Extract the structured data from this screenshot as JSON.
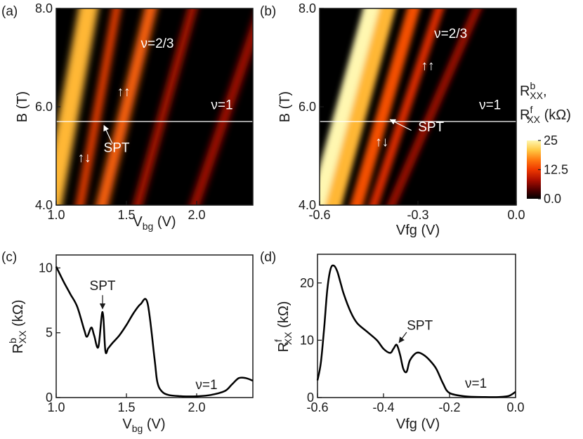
{
  "chart_data": [
    {
      "id": "a",
      "panel_label": "(a)",
      "type": "heatmap",
      "xlabel": "V",
      "xlabel_sub": "bg",
      "xlabel_unit": " (V)",
      "ylabel": "B (T)",
      "xlim": [
        1.0,
        2.4
      ],
      "ylim": [
        4.0,
        8.0
      ],
      "xticks": [
        "1.0",
        "1.5",
        "2.0"
      ],
      "xtick_values": [
        1.0,
        1.5,
        2.0
      ],
      "yticks": [
        "4.0",
        "6.0",
        "8.0"
      ],
      "ytick_values": [
        4.0,
        6.0,
        8.0
      ],
      "hline_B": 5.7,
      "stripes": [
        {
          "xb": 0.95,
          "xt": 1.25,
          "w": 0.14,
          "v": 20
        },
        {
          "xb": 1.15,
          "xt": 1.45,
          "w": 0.06,
          "v": 13
        },
        {
          "xb": 1.3,
          "xt": 1.7,
          "w": 0.09,
          "v": 15
        },
        {
          "xb": 1.55,
          "xt": 2.0,
          "w": 0.06,
          "v": 9
        },
        {
          "xb": 1.95,
          "xt": 2.5,
          "w": 0.07,
          "v": 8
        }
      ],
      "annotations": [
        {
          "text": "ν=2/3",
          "x": 1.72,
          "y": 7.2,
          "color": "#ffffff"
        },
        {
          "text": "ν=1",
          "x": 2.18,
          "y": 5.95,
          "color": "#ffffff"
        },
        {
          "text": "↑↑",
          "x": 1.48,
          "y": 6.22,
          "color": "#ffffff"
        },
        {
          "text": "↑↓",
          "x": 1.2,
          "y": 4.88,
          "color": "#ffffff"
        },
        {
          "text": "SPT",
          "x": 1.43,
          "y": 5.08,
          "color": "#ffffff"
        }
      ]
    },
    {
      "id": "b",
      "panel_label": "(b)",
      "type": "heatmap",
      "xlabel": "Vfg (V)",
      "ylabel": "B (T)",
      "xlim": [
        -0.6,
        0.0
      ],
      "ylim": [
        4.0,
        8.0
      ],
      "xticks": [
        "-0.6",
        "-0.3",
        "0.0"
      ],
      "xtick_values": [
        -0.6,
        -0.3,
        0.0
      ],
      "yticks": [
        "4.0",
        "6.0",
        "8.0"
      ],
      "ytick_values": [
        4.0,
        6.0,
        8.0
      ],
      "hline_B": 5.7,
      "stripes": [
        {
          "xb": -0.62,
          "xt": -0.43,
          "w": 0.05,
          "v": 25
        },
        {
          "xb": -0.57,
          "xt": -0.38,
          "w": 0.05,
          "v": 20
        },
        {
          "xb": -0.5,
          "xt": -0.3,
          "w": 0.04,
          "v": 14
        },
        {
          "xb": -0.45,
          "xt": -0.22,
          "w": 0.03,
          "v": 11
        },
        {
          "xb": -0.4,
          "xt": -0.1,
          "w": 0.03,
          "v": 7
        }
      ],
      "annotations": [
        {
          "text": "ν=2/3",
          "x": -0.2,
          "y": 7.4,
          "color": "#ffffff"
        },
        {
          "text": "ν=1",
          "x": -0.08,
          "y": 5.95,
          "color": "#ffffff"
        },
        {
          "text": "↑↑",
          "x": -0.27,
          "y": 6.75,
          "color": "#ffffff"
        },
        {
          "text": "↑↓",
          "x": -0.41,
          "y": 5.2,
          "color": "#ffffff"
        },
        {
          "text": "SPT",
          "x": -0.26,
          "y": 5.5,
          "color": "#ffffff"
        }
      ]
    },
    {
      "id": "c",
      "panel_label": "(c)",
      "type": "line",
      "xlabel": "V",
      "xlabel_sub": "bg",
      "xlabel_unit": " (V)",
      "ylabel": "R",
      "ylabel_sup": "b",
      "ylabel_sub": "XX",
      "ylabel_unit": " (kΩ)",
      "xlim": [
        1.0,
        2.4
      ],
      "ylim": [
        0,
        11
      ],
      "xticks": [
        "1.0",
        "1.5",
        "2.0"
      ],
      "xtick_values": [
        1.0,
        1.5,
        2.0
      ],
      "yticks": [
        "0",
        "5",
        "10"
      ],
      "ytick_values": [
        0,
        5,
        10
      ],
      "x": [
        1.0,
        1.05,
        1.1,
        1.15,
        1.2,
        1.22,
        1.25,
        1.27,
        1.3,
        1.33,
        1.35,
        1.37,
        1.4,
        1.45,
        1.5,
        1.55,
        1.6,
        1.65,
        1.7,
        1.72,
        1.75,
        1.8,
        1.9,
        2.0,
        2.1,
        2.2,
        2.25,
        2.3,
        2.35,
        2.4
      ],
      "y": [
        10.1,
        9.0,
        8.0,
        7.0,
        5.2,
        4.7,
        5.4,
        4.8,
        3.9,
        6.6,
        3.6,
        3.8,
        4.2,
        4.8,
        5.6,
        6.5,
        7.2,
        7.3,
        3.0,
        1.2,
        0.5,
        0.2,
        0.1,
        0.1,
        0.2,
        0.5,
        1.0,
        1.5,
        1.5,
        1.3
      ],
      "annotations": [
        {
          "text": "SPT",
          "x": 1.33,
          "y": 8.3,
          "color": "#1a1a1a"
        },
        {
          "text": "ν=1",
          "x": 2.07,
          "y": 0.65,
          "color": "#1a1a1a"
        }
      ]
    },
    {
      "id": "d",
      "panel_label": "(d)",
      "type": "line",
      "xlabel": "Vfg (V)",
      "ylabel": "R",
      "ylabel_sup": "f",
      "ylabel_sub": "XX",
      "ylabel_unit": " (kΩ)",
      "xlim": [
        -0.6,
        0.0
      ],
      "ylim": [
        0,
        25
      ],
      "xticks": [
        "-0.6",
        "-0.4",
        "-0.2",
        "0.0"
      ],
      "xtick_values": [
        -0.6,
        -0.4,
        -0.2,
        0.0
      ],
      "yticks": [
        "0",
        "10",
        "20"
      ],
      "ytick_values": [
        0,
        10,
        20
      ],
      "x": [
        -0.6,
        -0.59,
        -0.58,
        -0.57,
        -0.56,
        -0.55,
        -0.54,
        -0.53,
        -0.52,
        -0.5,
        -0.48,
        -0.45,
        -0.42,
        -0.4,
        -0.38,
        -0.37,
        -0.36,
        -0.35,
        -0.34,
        -0.33,
        -0.32,
        -0.3,
        -0.28,
        -0.26,
        -0.24,
        -0.22,
        -0.2,
        -0.15,
        -0.1,
        -0.05,
        -0.02,
        0.0
      ],
      "y": [
        3.0,
        6.0,
        12.0,
        19.0,
        22.5,
        23.0,
        22.0,
        20.0,
        18.0,
        15.0,
        13.0,
        11.5,
        10.0,
        8.5,
        7.8,
        8.5,
        9.2,
        7.5,
        5.0,
        4.5,
        6.5,
        7.8,
        7.5,
        6.5,
        5.0,
        2.5,
        0.8,
        0.2,
        0.1,
        0.1,
        0.3,
        1.0
      ],
      "annotations": [
        {
          "text": "SPT",
          "x": -0.29,
          "y": 11.8,
          "color": "#1a1a1a"
        },
        {
          "text": "ν=1",
          "x": -0.12,
          "y": 1.7,
          "color": "#1a1a1a"
        }
      ]
    }
  ],
  "colorbar": {
    "title_line1_R": "R",
    "title_line1_sup": "b",
    "title_line1_sub": "XX",
    "title_line1_tail": ",",
    "title_line2_R": "R",
    "title_line2_sup": "f",
    "title_line2_sub": "XX",
    "title_line2_unit": " (kΩ)",
    "ticks": [
      "25",
      "12.5",
      "0.0"
    ],
    "tick_values": [
      25,
      12.5,
      0
    ],
    "range": [
      0,
      25
    ],
    "colors": [
      "#000000",
      "#5a0000",
      "#b01000",
      "#ee3800",
      "#ff7a10",
      "#ffc640",
      "#fff7b0"
    ]
  }
}
